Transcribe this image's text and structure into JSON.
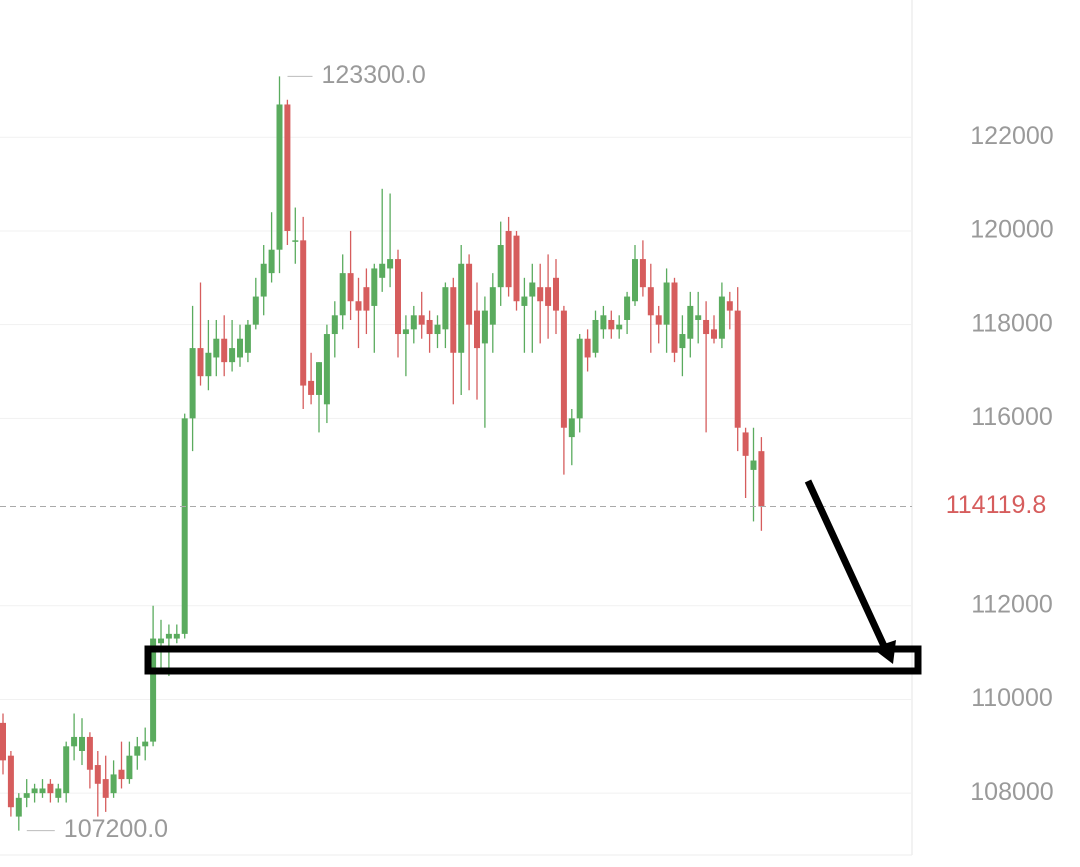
{
  "chart_data": {
    "type": "candlestick",
    "open": [
      109500,
      108800,
      107500,
      107900,
      108000,
      108000,
      108200,
      107900,
      108000,
      109000,
      108900,
      109200,
      108600,
      108300,
      108000,
      108500,
      108300,
      108800,
      109000,
      109100,
      111200,
      111300,
      111300,
      111400,
      116000,
      117500,
      116900,
      117300,
      117700,
      117200,
      117300,
      117400,
      118000,
      118600,
      119100,
      119600,
      122700,
      119800,
      119800,
      116800,
      116500,
      116300,
      117800,
      118200,
      119100,
      118500,
      118800,
      118400,
      119000,
      119200,
      119400,
      117800,
      117900,
      118200,
      118100,
      117800,
      117900,
      118800,
      117400,
      119300,
      118300,
      117600,
      118000,
      118800,
      120000,
      119900,
      118400,
      118600,
      118800,
      118800,
      119000,
      118300,
      115600,
      116000,
      117700,
      117400,
      117900,
      118100,
      117900,
      118100,
      118500,
      119400,
      118800,
      118200,
      118000,
      118900,
      117500,
      117700,
      118100,
      118100,
      117900,
      117700,
      118500,
      118300,
      115700,
      114900,
      115300
    ],
    "high": [
      109700,
      108900,
      108000,
      108300,
      108200,
      108300,
      108300,
      108200,
      109100,
      109700,
      109600,
      109300,
      108900,
      108800,
      108700,
      109100,
      109100,
      109200,
      109400,
      112000,
      111700,
      111600,
      111600,
      116100,
      118400,
      118900,
      118100,
      118100,
      118200,
      118100,
      118000,
      118100,
      119000,
      119700,
      120400,
      123300,
      122800,
      120500,
      120300,
      117400,
      117200,
      118000,
      118500,
      119500,
      120000,
      119000,
      119200,
      119300,
      120900,
      120800,
      119600,
      118200,
      118400,
      118700,
      118300,
      118200,
      118900,
      119000,
      119700,
      119500,
      118900,
      118600,
      119100,
      120200,
      120300,
      120000,
      119000,
      119300,
      119300,
      119500,
      119400,
      118400,
      116200,
      117800,
      117900,
      118300,
      118400,
      118300,
      118200,
      118700,
      119700,
      119800,
      119300,
      118400,
      119200,
      119000,
      118200,
      118700,
      118700,
      118500,
      118200,
      118900,
      118700,
      118800,
      115800,
      115800,
      115600
    ],
    "low": [
      108400,
      107500,
      107200,
      107700,
      107800,
      107900,
      107800,
      107800,
      107800,
      108700,
      108600,
      108100,
      107500,
      107600,
      107900,
      108100,
      108200,
      108500,
      108700,
      109000,
      110600,
      110500,
      111200,
      111300,
      115300,
      116700,
      116600,
      116900,
      116900,
      117000,
      117100,
      117200,
      117900,
      118200,
      118900,
      119100,
      119700,
      119300,
      116200,
      116300,
      115700,
      115900,
      117300,
      117900,
      118100,
      117500,
      117800,
      117400,
      118700,
      118800,
      117300,
      116900,
      117600,
      117700,
      117400,
      117500,
      117500,
      116300,
      116500,
      116600,
      116400,
      115800,
      117400,
      118400,
      118600,
      118300,
      117400,
      117400,
      117600,
      117700,
      117800,
      114800,
      115000,
      115700,
      117000,
      117300,
      117700,
      117700,
      117700,
      117800,
      118400,
      118600,
      117400,
      117600,
      117400,
      117200,
      116900,
      117300,
      117600,
      115700,
      117600,
      117500,
      117900,
      115300,
      114300,
      113800,
      113600
    ],
    "close": [
      108700,
      107700,
      107900,
      108000,
      108100,
      108100,
      108000,
      108100,
      109000,
      109200,
      109200,
      108500,
      108200,
      107900,
      108400,
      108300,
      108800,
      109000,
      109100,
      111300,
      111300,
      111400,
      111400,
      116000,
      117500,
      116900,
      117400,
      117700,
      117200,
      117500,
      117700,
      118000,
      118600,
      119300,
      119600,
      122700,
      120000,
      119800,
      116700,
      116500,
      117200,
      117800,
      118200,
      119100,
      118500,
      118300,
      118300,
      119200,
      119300,
      119400,
      117800,
      117900,
      118200,
      118000,
      117800,
      118000,
      118800,
      117400,
      119300,
      118000,
      117500,
      118300,
      118800,
      119700,
      118800,
      118500,
      118600,
      118900,
      118500,
      118400,
      118300,
      115800,
      116000,
      117700,
      117300,
      118100,
      118200,
      117900,
      118000,
      118600,
      119400,
      118800,
      118200,
      118000,
      118900,
      117400,
      117800,
      118400,
      118200,
      117800,
      117700,
      118600,
      118300,
      115800,
      115200,
      115100,
      114119.8
    ],
    "up_color": "#5aab5e",
    "down_color": "#d65d5d",
    "ylim": [
      106680,
      124930
    ],
    "yticks": [
      108000,
      110000,
      112000,
      116000,
      118000,
      120000,
      122000
    ],
    "grid": true,
    "max_label": {
      "value": 123300,
      "label": "123300.0"
    },
    "min_label": {
      "value": 107200,
      "label": "107200.0"
    },
    "last_price": 114119.8
  }
}
